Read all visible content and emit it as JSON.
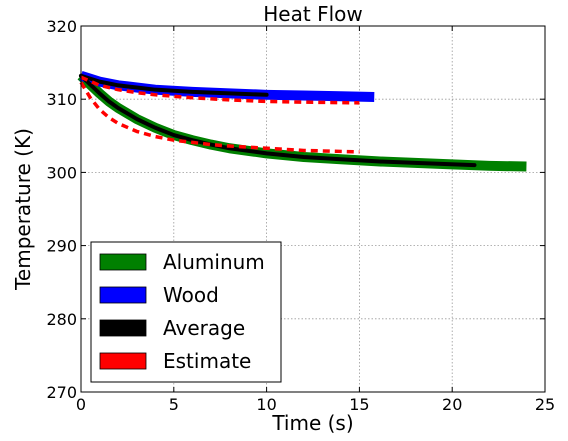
{
  "chart_data": {
    "type": "line",
    "title": "Heat Flow",
    "xlabel": "Time (s)",
    "ylabel": "Temperature (K)",
    "xlim": [
      0,
      25
    ],
    "ylim": [
      270,
      320
    ],
    "xticks": [
      "0",
      "5",
      "10",
      "15",
      "20",
      "25"
    ],
    "yticks": [
      "270",
      "280",
      "290",
      "300",
      "310",
      "320"
    ],
    "grid": true,
    "legend_position": "lower-left",
    "series": [
      {
        "name": "Aluminum",
        "color": "#008000",
        "style": "thick",
        "x": [
          0,
          0.5,
          1,
          1.5,
          2,
          3,
          4,
          5,
          6,
          7,
          8,
          10,
          12,
          14,
          16,
          18,
          20,
          22,
          24
        ],
        "y": [
          313.2,
          312.0,
          310.8,
          309.7,
          308.8,
          307.3,
          306.1,
          305.1,
          304.4,
          303.8,
          303.3,
          302.6,
          302.1,
          301.8,
          301.5,
          301.3,
          301.1,
          300.9,
          300.8
        ]
      },
      {
        "name": "Wood",
        "color": "#0000ff",
        "style": "thick",
        "x": [
          0,
          1,
          2,
          3,
          4,
          6,
          8,
          10,
          12,
          14,
          15.8
        ],
        "y": [
          313.2,
          312.4,
          311.9,
          311.6,
          311.3,
          311.0,
          310.8,
          310.6,
          310.5,
          310.4,
          310.3
        ]
      },
      {
        "name": "Average",
        "color": "#000000",
        "style": "medium",
        "x": [
          0,
          0.5,
          1,
          1.5,
          2,
          3,
          4,
          5,
          6,
          7,
          8,
          10,
          12,
          14,
          16,
          18,
          21.2
        ],
        "y": [
          313.2,
          312.0,
          310.8,
          309.7,
          308.8,
          307.3,
          306.1,
          305.1,
          304.4,
          303.8,
          303.3,
          302.6,
          302.1,
          301.8,
          301.5,
          301.3,
          301.0
        ]
      },
      {
        "name": "Average",
        "color": "#000000",
        "style": "medium",
        "x": [
          0,
          1,
          2,
          3,
          4,
          6,
          8,
          10
        ],
        "y": [
          313.2,
          312.4,
          311.9,
          311.6,
          311.3,
          311.0,
          310.8,
          310.6
        ]
      },
      {
        "name": "Estimate",
        "color": "#ff0000",
        "style": "dashed",
        "x": [
          0,
          0.5,
          1,
          1.5,
          2,
          3,
          4,
          5,
          6,
          7,
          8,
          10,
          12,
          15
        ],
        "y": [
          312.3,
          310.2,
          308.6,
          307.5,
          306.7,
          305.6,
          304.9,
          304.4,
          304.1,
          303.8,
          303.6,
          303.3,
          303.0,
          302.8
        ]
      },
      {
        "name": "Estimate",
        "color": "#ff0000",
        "style": "dashed",
        "x": [
          0,
          1,
          2,
          3,
          4,
          6,
          8,
          10,
          12,
          15
        ],
        "y": [
          313.0,
          311.9,
          311.3,
          310.9,
          310.6,
          310.2,
          309.9,
          309.7,
          309.6,
          309.5
        ]
      }
    ],
    "legend": [
      {
        "label": "Aluminum",
        "color": "#008000"
      },
      {
        "label": "Wood",
        "color": "#0000ff"
      },
      {
        "label": "Average",
        "color": "#000000"
      },
      {
        "label": "Estimate",
        "color": "#ff0000"
      }
    ]
  }
}
